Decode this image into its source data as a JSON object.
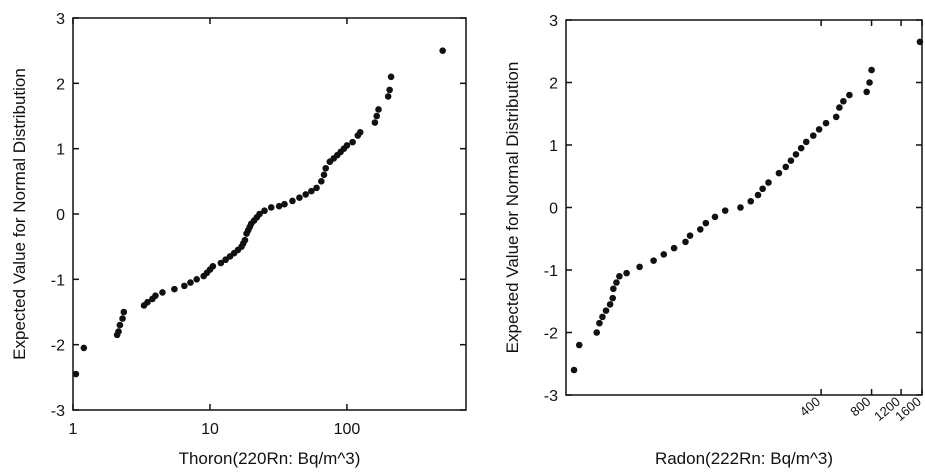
{
  "chart_data": [
    {
      "type": "scatter",
      "xlabel": "Thoron(220Rn: Bq/m^3)",
      "ylabel": "Expected Value for Normal Distribution",
      "xlog": true,
      "color": "#111111",
      "xlim": [
        1,
        740
      ],
      "xticks": [
        1,
        10,
        100
      ],
      "ylim": [
        -3,
        3
      ],
      "yticks": [
        -3,
        -2,
        -1,
        0,
        1,
        2,
        3
      ],
      "x": [
        1.05,
        1.2,
        2.1,
        2.15,
        2.2,
        2.3,
        2.35,
        3.3,
        3.5,
        3.8,
        4.0,
        4.5,
        5.5,
        6.5,
        7.2,
        8,
        9,
        9.5,
        10,
        10.5,
        12,
        13,
        14,
        15,
        16,
        17,
        17.5,
        18,
        18.5,
        19,
        19.5,
        20,
        21,
        22,
        23,
        25,
        28,
        32,
        35,
        40,
        45,
        50,
        55,
        60,
        65,
        68,
        70,
        75,
        80,
        85,
        90,
        95,
        100,
        110,
        120,
        125,
        160,
        165,
        170,
        200,
        205,
        210,
        500
      ],
      "values": [
        -2.45,
        -2.05,
        -1.85,
        -1.8,
        -1.7,
        -1.6,
        -1.5,
        -1.4,
        -1.35,
        -1.3,
        -1.25,
        -1.2,
        -1.15,
        -1.1,
        -1.05,
        -1.0,
        -0.95,
        -0.9,
        -0.85,
        -0.8,
        -0.75,
        -0.7,
        -0.65,
        -0.6,
        -0.55,
        -0.5,
        -0.45,
        -0.4,
        -0.3,
        -0.25,
        -0.2,
        -0.15,
        -0.1,
        -0.05,
        0,
        0.05,
        0.1,
        0.12,
        0.15,
        0.2,
        0.25,
        0.3,
        0.35,
        0.4,
        0.5,
        0.6,
        0.7,
        0.8,
        0.85,
        0.9,
        0.95,
        1.0,
        1.05,
        1.1,
        1.2,
        1.25,
        1.4,
        1.5,
        1.6,
        1.8,
        1.9,
        2.1,
        2.5
      ]
    },
    {
      "type": "scatter",
      "xlabel": "Radon(222Rn: Bq/m^3)",
      "ylabel": "Expected Value for Normal Distribution",
      "xlog": true,
      "color": "#111111",
      "xlim": [
        12,
        1600
      ],
      "xticks": [
        400,
        800,
        1200,
        1600
      ],
      "ylim": [
        -3,
        3
      ],
      "yticks": [
        -3,
        -2,
        -1,
        0,
        1,
        2,
        3
      ],
      "x": [
        13.4,
        14.4,
        18.3,
        19,
        19.8,
        20.8,
        22,
        22.8,
        23,
        24,
        25,
        27.6,
        33,
        40,
        46,
        53,
        62,
        66,
        76,
        82,
        93,
        107,
        132,
        152,
        168,
        179,
        194,
        224,
        246,
        264,
        283,
        304,
        326,
        359,
        389,
        428,
        492,
        514,
        543,
        590,
        748,
        778,
        800,
        1555
      ],
      "values": [
        -2.6,
        -2.2,
        -2.0,
        -1.85,
        -1.75,
        -1.65,
        -1.55,
        -1.45,
        -1.3,
        -1.2,
        -1.1,
        -1.05,
        -0.95,
        -0.85,
        -0.75,
        -0.65,
        -0.55,
        -0.45,
        -0.35,
        -0.25,
        -0.15,
        -0.05,
        0.0,
        0.1,
        0.2,
        0.3,
        0.4,
        0.55,
        0.65,
        0.75,
        0.85,
        0.95,
        1.05,
        1.15,
        1.25,
        1.35,
        1.45,
        1.6,
        1.7,
        1.8,
        1.85,
        2.0,
        2.2,
        2.65
      ]
    }
  ]
}
